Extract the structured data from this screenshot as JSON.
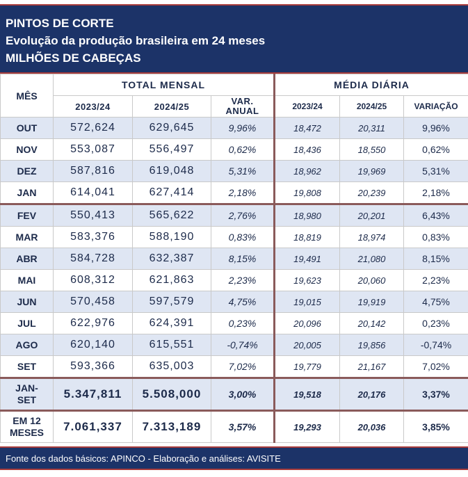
{
  "header": {
    "title": "PINTOS DE CORTE",
    "subtitle": "Evolução da produção brasileira em 24 meses",
    "unit": "MILHÕES DE CABEÇAS"
  },
  "columns": {
    "month": "MÊS",
    "group_monthly": "TOTAL MENSAL",
    "group_daily": "MÉDIA DIÁRIA",
    "y1": "2023/24",
    "y2": "2024/25",
    "var_annual_l1": "VAR.",
    "var_annual_l2": "ANUAL",
    "d_y1": "2023/24",
    "d_y2": "2024/25",
    "d_var": "VARIAÇÃO"
  },
  "rows": [
    {
      "month": "OUT",
      "t1": "572,624",
      "t2": "629,645",
      "var": "9,96%",
      "d1": "18,472",
      "d2": "20,311",
      "dvar": "9,96%"
    },
    {
      "month": "NOV",
      "t1": "553,087",
      "t2": "556,497",
      "var": "0,62%",
      "d1": "18,436",
      "d2": "18,550",
      "dvar": "0,62%"
    },
    {
      "month": "DEZ",
      "t1": "587,816",
      "t2": "619,048",
      "var": "5,31%",
      "d1": "18,962",
      "d2": "19,969",
      "dvar": "5,31%"
    },
    {
      "month": "JAN",
      "t1": "614,041",
      "t2": "627,414",
      "var": "2,18%",
      "d1": "19,808",
      "d2": "20,239",
      "dvar": "2,18%"
    },
    {
      "month": "FEV",
      "t1": "550,413",
      "t2": "565,622",
      "var": "2,76%",
      "d1": "18,980",
      "d2": "20,201",
      "dvar": "6,43%"
    },
    {
      "month": "MAR",
      "t1": "583,376",
      "t2": "588,190",
      "var": "0,83%",
      "d1": "18,819",
      "d2": "18,974",
      "dvar": "0,83%"
    },
    {
      "month": "ABR",
      "t1": "584,728",
      "t2": "632,387",
      "var": "8,15%",
      "d1": "19,491",
      "d2": "21,080",
      "dvar": "8,15%"
    },
    {
      "month": "MAI",
      "t1": "608,312",
      "t2": "621,863",
      "var": "2,23%",
      "d1": "19,623",
      "d2": "20,060",
      "dvar": "2,23%"
    },
    {
      "month": "JUN",
      "t1": "570,458",
      "t2": "597,579",
      "var": "4,75%",
      "d1": "19,015",
      "d2": "19,919",
      "dvar": "4,75%"
    },
    {
      "month": "JUL",
      "t1": "622,976",
      "t2": "624,391",
      "var": "0,23%",
      "d1": "20,096",
      "d2": "20,142",
      "dvar": "0,23%"
    },
    {
      "month": "AGO",
      "t1": "620,140",
      "t2": "615,551",
      "var": "-0,74%",
      "d1": "20,005",
      "d2": "19,856",
      "dvar": "-0,74%"
    },
    {
      "month": "SET",
      "t1": "593,366",
      "t2": "635,003",
      "var": "7,02%",
      "d1": "19,779",
      "d2": "21,167",
      "dvar": "7,02%"
    }
  ],
  "summary": [
    {
      "label_l1": "JAN-",
      "label_l2": "SET",
      "t1": "5.347,811",
      "t2": "5.508,000",
      "var": "3,00%",
      "d1": "19,518",
      "d2": "20,176",
      "dvar": "3,37%"
    },
    {
      "label_l1": "EM 12",
      "label_l2": "MESES",
      "t1": "7.061,337",
      "t2": "7.313,189",
      "var": "3,57%",
      "d1": "19,293",
      "d2": "20,036",
      "dvar": "3,85%"
    }
  ],
  "colors": {
    "navy": "#1c3368",
    "accent": "#a83c3c",
    "negative": "#cc0000",
    "row_alt": "#dfe6f3"
  },
  "footer": "Fonte dos dados básicos: APINCO - Elaboração e análises: AVISITE"
}
